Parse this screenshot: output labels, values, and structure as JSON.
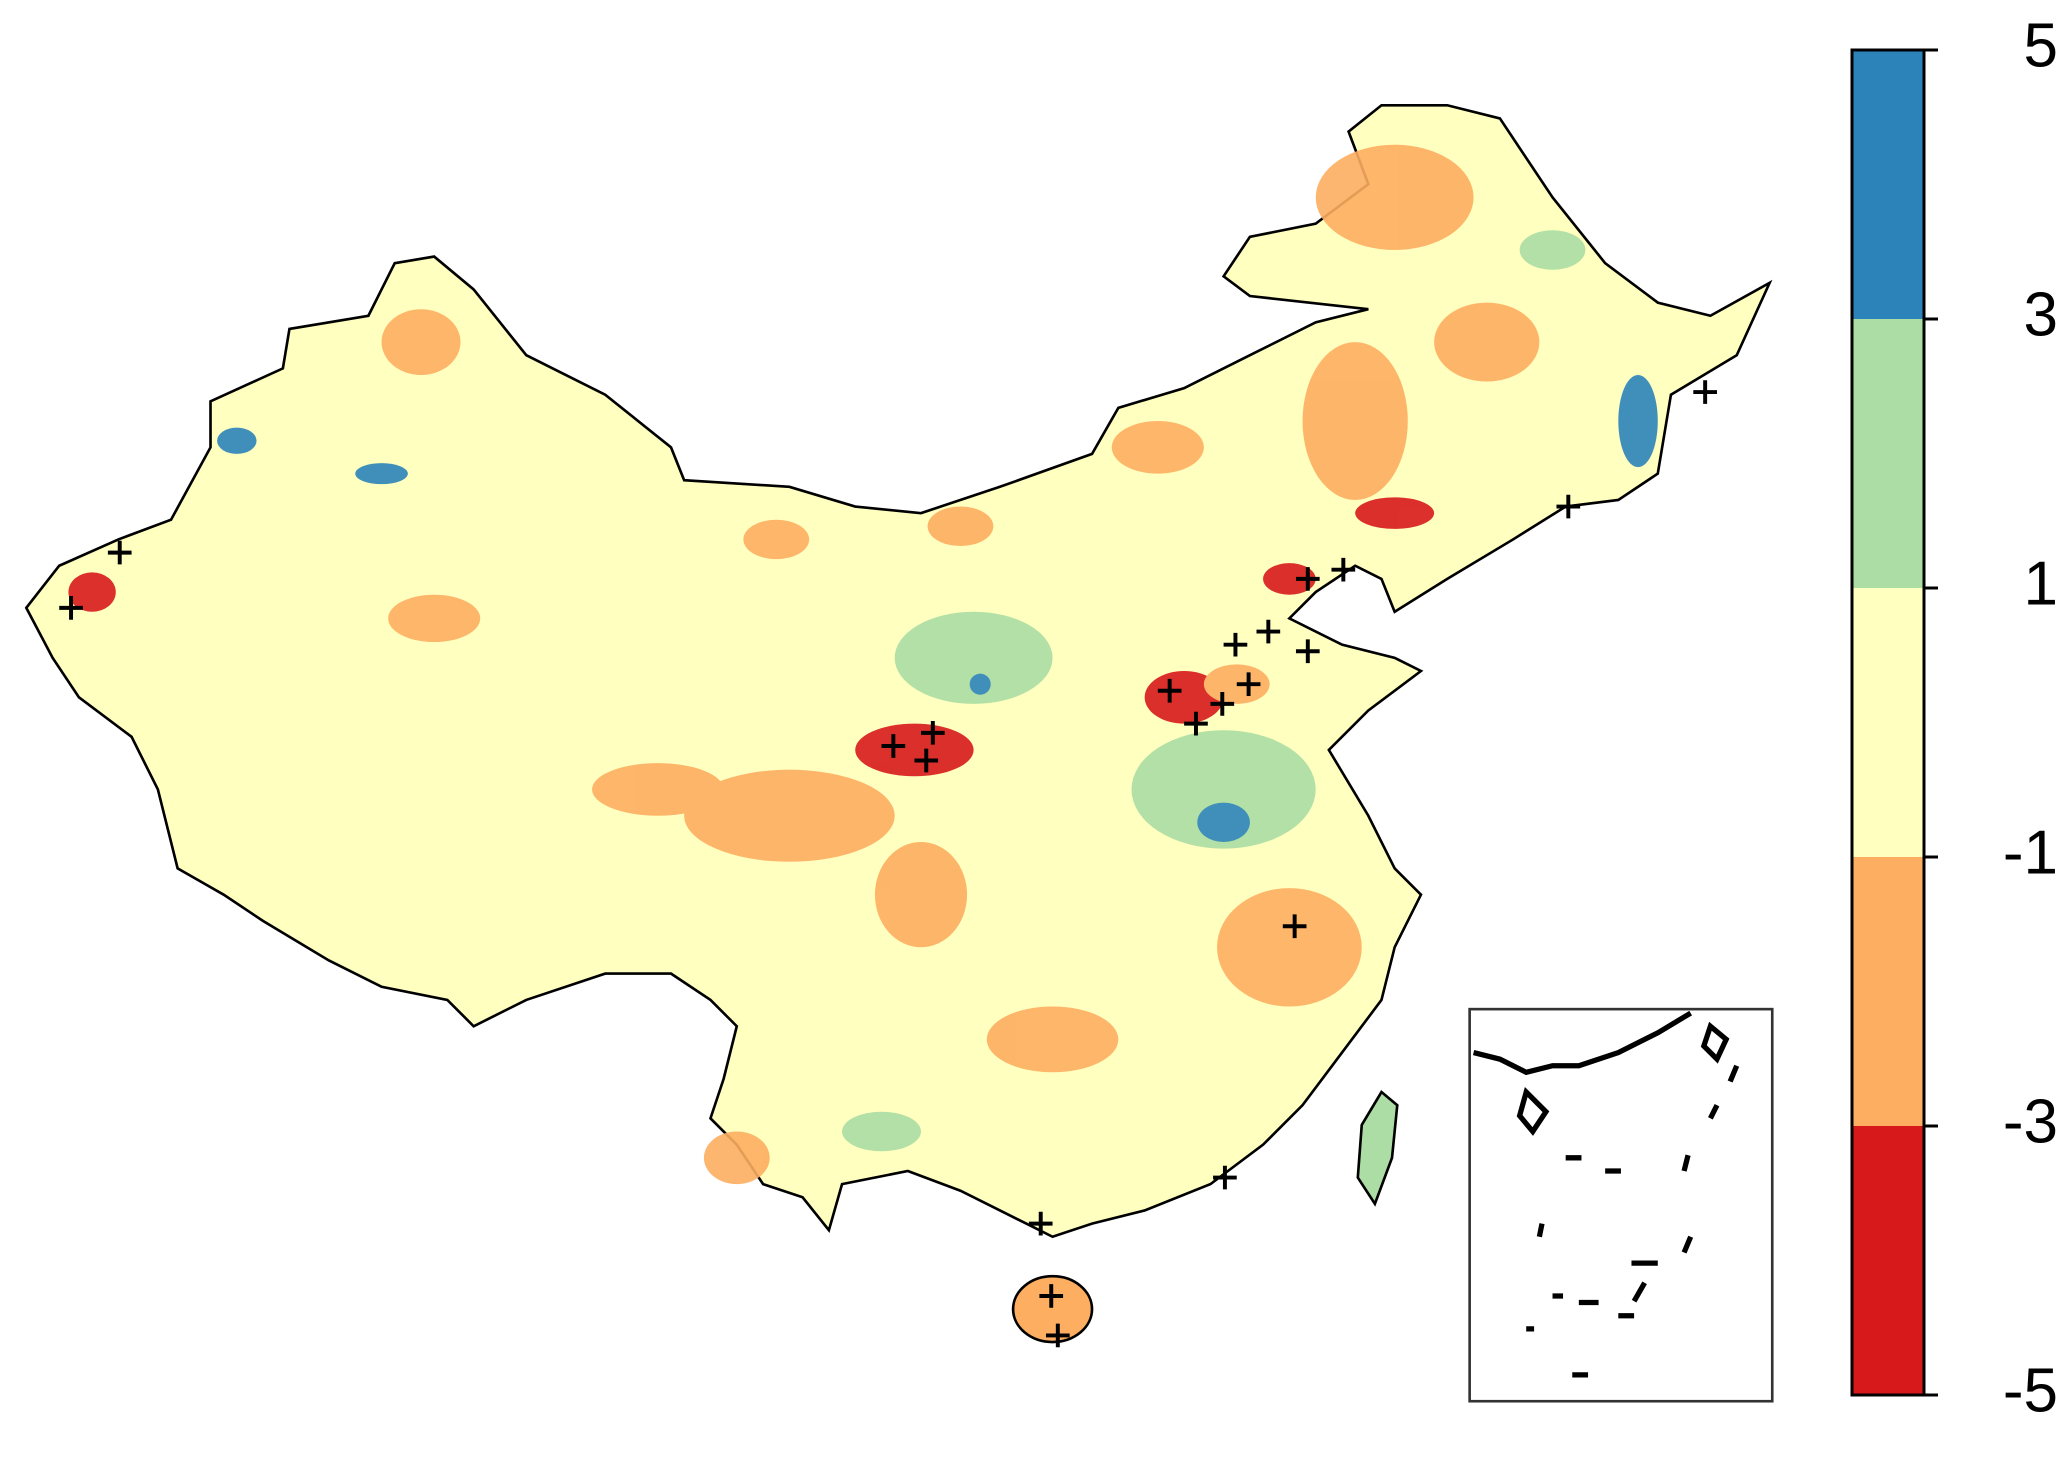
{
  "legend": {
    "ticks": [
      -5,
      -3,
      -1,
      1,
      3,
      5
    ],
    "colors": [
      "#d7191c",
      "#fdae61",
      "#ffffbf",
      "#abdda4",
      "#2b83ba"
    ]
  }
}
